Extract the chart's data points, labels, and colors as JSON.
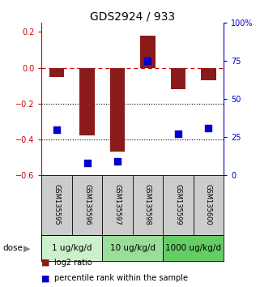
{
  "title": "GDS2924 / 933",
  "samples": [
    "GSM135595",
    "GSM135596",
    "GSM135597",
    "GSM135598",
    "GSM135599",
    "GSM135600"
  ],
  "log2_ratio": [
    -0.05,
    -0.38,
    -0.47,
    0.18,
    -0.12,
    -0.07
  ],
  "percentile_rank": [
    30,
    8,
    9,
    75,
    27,
    31
  ],
  "ylim_left": [
    -0.6,
    0.25
  ],
  "ylim_right": [
    0,
    100
  ],
  "yticks_left": [
    0.2,
    0.0,
    -0.2,
    -0.4,
    -0.6
  ],
  "yticks_right": [
    100,
    75,
    50,
    25,
    0
  ],
  "dose_groups": [
    {
      "label": "1 ug/kg/d",
      "indices": [
        0,
        1
      ],
      "color": "#ccf0cc"
    },
    {
      "label": "10 ug/kg/d",
      "indices": [
        2,
        3
      ],
      "color": "#99dd99"
    },
    {
      "label": "1000 ug/kg/d",
      "indices": [
        4,
        5
      ],
      "color": "#66cc66"
    }
  ],
  "bar_color": "#8B1A1A",
  "dot_color": "#0000CC",
  "bar_width": 0.5,
  "dot_size": 30,
  "background_main": "#ffffff",
  "background_samples": "#cccccc",
  "dashed_line_color": "#cc0000",
  "dotted_line_color": "#000000",
  "left_axis_color": "#cc0000",
  "right_axis_color": "#0000cc",
  "legend_bar_label": "log2 ratio",
  "legend_dot_label": "percentile rank within the sample",
  "dose_label": "dose",
  "title_fontsize": 10,
  "tick_fontsize": 7,
  "sample_fontsize": 6,
  "dose_fontsize": 7.5,
  "legend_fontsize": 7
}
